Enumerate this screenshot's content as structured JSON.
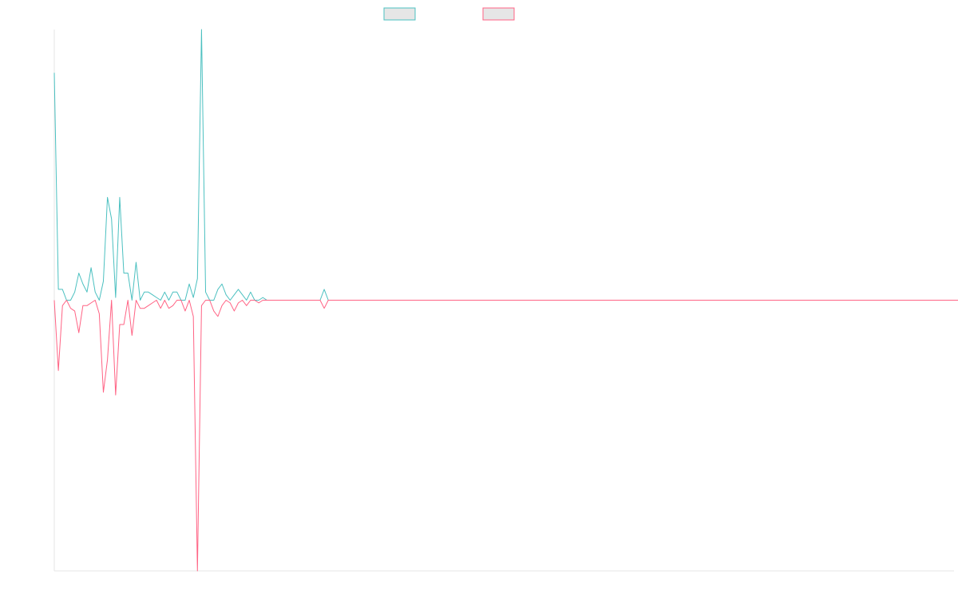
{
  "chart_data": {
    "type": "line",
    "title": "",
    "xlabel": "",
    "ylabel": "",
    "grid": false,
    "legend_position": "top-center",
    "xlim": [
      0,
      220
    ],
    "ylim": [
      -1,
      1
    ],
    "series": [
      {
        "color": "#4bc0c0",
        "fill": "#e6e6e6",
        "values": [
          0.84,
          0.04,
          0.04,
          0,
          0,
          0.03,
          0.1,
          0.06,
          0.03,
          0.12,
          0.03,
          0,
          0.07,
          0.38,
          0.3,
          0.01,
          0.38,
          0.1,
          0.1,
          0,
          0.14,
          0,
          0.03,
          0.03,
          0.02,
          0.01,
          0,
          0.03,
          0,
          0.03,
          0.03,
          0,
          0,
          0.06,
          0.01,
          0.08,
          1.0,
          0.03,
          0,
          0,
          0.04,
          0.06,
          0.02,
          0,
          0.02,
          0.04,
          0.02,
          0,
          0.03,
          0,
          0,
          0.01,
          0,
          0,
          0,
          0,
          0,
          0,
          0,
          0,
          0,
          0,
          0,
          0,
          0,
          0,
          0.04,
          0,
          0,
          0,
          0,
          0,
          0,
          0,
          0,
          0,
          0,
          0,
          0,
          0,
          0,
          0,
          0,
          0,
          0,
          0,
          0,
          0,
          0,
          0,
          0,
          0,
          0,
          0,
          0,
          0,
          0,
          0,
          0,
          0,
          0,
          0,
          0,
          0,
          0,
          0,
          0,
          0,
          0,
          0,
          0,
          0,
          0,
          0,
          0,
          0,
          0,
          0,
          0,
          0,
          0,
          0,
          0,
          0,
          0,
          0,
          0,
          0,
          0,
          0,
          0,
          0,
          0,
          0,
          0,
          0,
          0,
          0,
          0,
          0,
          0,
          0,
          0,
          0,
          0,
          0,
          0,
          0,
          0,
          0,
          0,
          0,
          0,
          0,
          0,
          0,
          0,
          0,
          0,
          0,
          0,
          0,
          0,
          0,
          0,
          0,
          0,
          0,
          0,
          0,
          0,
          0,
          0,
          0,
          0,
          0,
          0,
          0,
          0,
          0,
          0,
          0,
          0,
          0,
          0,
          0,
          0,
          0,
          0,
          0,
          0,
          0,
          0,
          0,
          0,
          0,
          0,
          0,
          0,
          0,
          0,
          0,
          0,
          0,
          0,
          0,
          0,
          0,
          0,
          0,
          0,
          0,
          0,
          0,
          0,
          0,
          0,
          0,
          0,
          0,
          0,
          0,
          0,
          0,
          0,
          0,
          0
        ]
      },
      {
        "color": "#ff6384",
        "fill": "#e6e6e6",
        "values": [
          0,
          -0.26,
          -0.02,
          0,
          -0.03,
          -0.04,
          -0.12,
          -0.02,
          -0.02,
          -0.01,
          0,
          -0.05,
          -0.34,
          -0.22,
          0,
          -0.35,
          -0.09,
          -0.09,
          0,
          -0.13,
          0,
          -0.03,
          -0.03,
          -0.02,
          -0.01,
          0,
          -0.03,
          0,
          -0.03,
          -0.02,
          0,
          0,
          -0.04,
          0,
          -0.06,
          -1.0,
          -0.02,
          0,
          0,
          -0.04,
          -0.06,
          -0.02,
          0,
          -0.01,
          -0.04,
          -0.01,
          0,
          -0.02,
          0,
          0,
          -0.01,
          0,
          0,
          0,
          0,
          0,
          0,
          0,
          0,
          0,
          0,
          0,
          0,
          0,
          0,
          0,
          -0.03,
          0,
          0,
          0,
          0,
          0,
          0,
          0,
          0,
          0,
          0,
          0,
          0,
          0,
          0,
          0,
          0,
          0,
          0,
          0,
          0,
          0,
          0,
          0,
          0,
          0,
          0,
          0,
          0,
          0,
          0,
          0,
          0,
          0,
          0,
          0,
          0,
          0,
          0,
          0,
          0,
          0,
          0,
          0,
          0,
          0,
          0,
          0,
          0,
          0,
          0,
          0,
          0,
          0,
          0,
          0,
          0,
          0,
          0,
          0,
          0,
          0,
          0,
          0,
          0,
          0,
          0,
          0,
          0,
          0,
          0,
          0,
          0,
          0,
          0,
          0,
          0,
          0,
          0,
          0,
          0,
          0,
          0,
          0,
          0,
          0,
          0,
          0,
          0,
          0,
          0,
          0,
          0,
          0,
          0,
          0,
          0,
          0,
          0,
          0,
          0,
          0,
          0,
          0,
          0,
          0,
          0,
          0,
          0,
          0,
          0,
          0,
          0,
          0,
          0,
          0,
          0,
          0,
          0,
          0,
          0,
          0,
          0,
          0,
          0,
          0,
          0,
          0,
          0,
          0,
          0,
          0,
          0,
          0,
          0,
          0,
          0,
          0,
          0,
          0,
          0,
          0,
          0,
          0,
          0,
          0,
          0,
          0,
          0,
          0,
          0,
          0,
          0,
          0,
          0,
          0,
          0,
          0,
          0,
          0,
          0
        ]
      }
    ]
  }
}
